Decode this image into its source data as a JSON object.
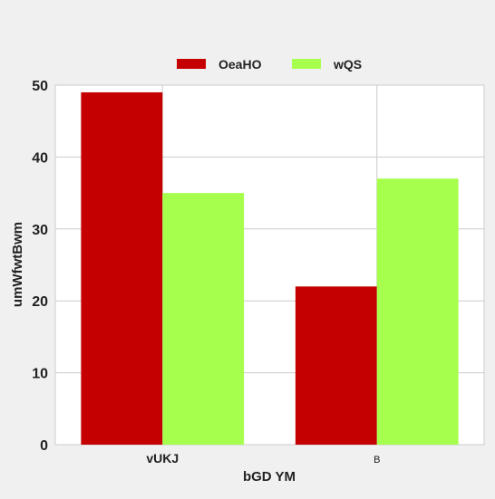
{
  "chart_data": {
    "type": "bar",
    "title": "",
    "xlabel": "bGD YM",
    "ylabel": "umWfwtBwm",
    "categories": [
      "vUKJ",
      "B"
    ],
    "series": [
      {
        "name": "OeaHO",
        "values": [
          49,
          22
        ],
        "color": "#c40000"
      },
      {
        "name": "wQS",
        "values": [
          35,
          37
        ],
        "color": "#a6ff4d"
      }
    ],
    "ylim": [
      0,
      50
    ],
    "yticks": [
      0,
      10,
      20,
      30,
      40,
      50
    ],
    "grid": true,
    "legend_position": "top-center",
    "background": "#f0f0f0",
    "plot_background": "#ffffff",
    "grid_color": "#cccccc"
  }
}
